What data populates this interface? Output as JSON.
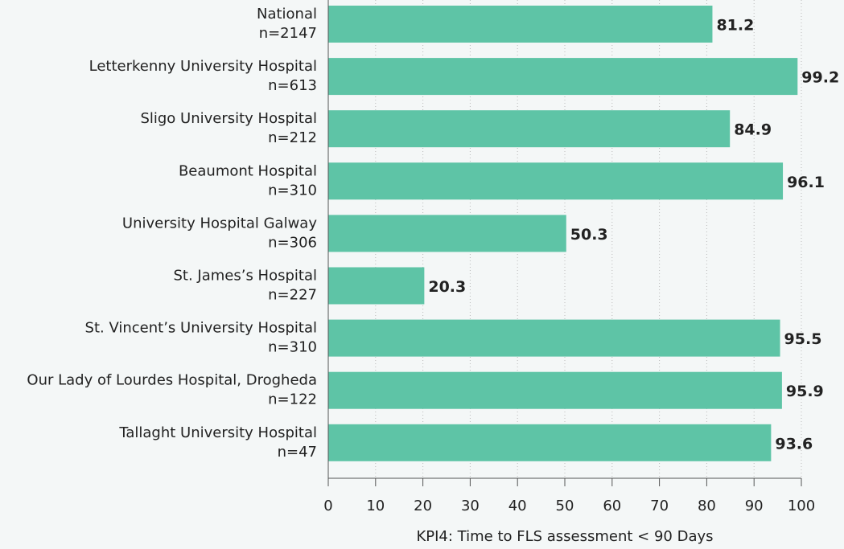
{
  "chart_data": {
    "type": "bar",
    "orientation": "horizontal",
    "x_label": "KPI4: Time to FLS assessment < 90 Days",
    "categories": [
      "National",
      "Letterkenny University Hospital",
      "Sligo University Hospital",
      "Beaumont Hospital",
      "University Hospital Galway",
      "St. James’s Hospital",
      "St. Vincent’s University Hospital",
      "Our Lady of Lourdes Hospital, Drogheda",
      "Tallaght University Hospital"
    ],
    "category_counts": [
      "n=2147",
      "n=613",
      "n=212",
      "n=310",
      "n=306",
      "n=227",
      "n=310",
      "n=122",
      "n=47"
    ],
    "values": [
      81.2,
      99.2,
      84.9,
      96.1,
      50.3,
      20.3,
      95.5,
      95.9,
      93.6
    ],
    "value_labels": [
      "81.2",
      "99.2",
      "84.9",
      "96.1",
      "50.3",
      "20.3",
      "95.5",
      "95.9",
      "93.6"
    ],
    "color": "#5ec4a6",
    "xlim": [
      0,
      100
    ],
    "xticks": [
      0,
      10,
      20,
      30,
      40,
      50,
      60,
      70,
      80,
      90,
      100
    ],
    "grid": true
  }
}
